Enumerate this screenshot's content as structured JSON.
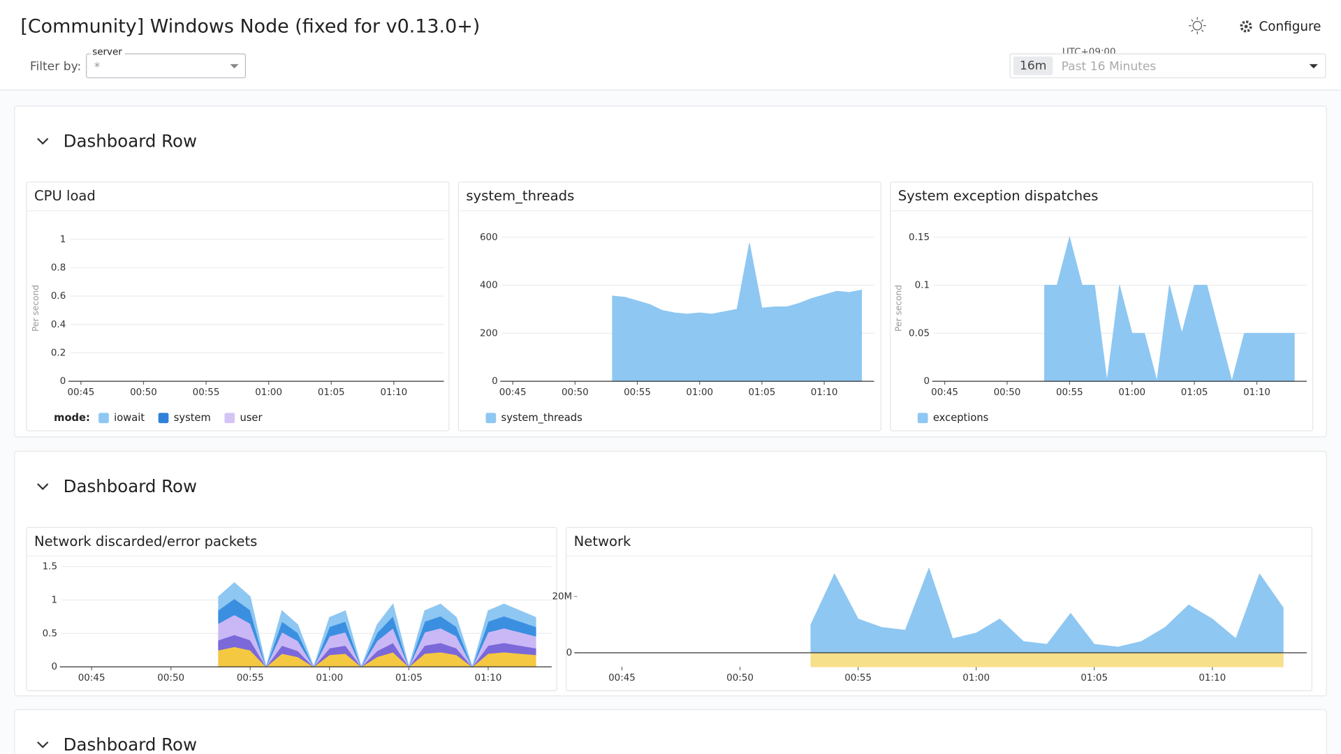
{
  "header": {
    "title": "[Community] Windows Node (fixed for v0.13.0+)",
    "configure": "Configure"
  },
  "filter": {
    "label": "Filter by:",
    "field": "server",
    "value": "*"
  },
  "time_range": {
    "timezone": "UTC+09:00",
    "short": "16m",
    "label": "Past 16 Minutes"
  },
  "rows": [
    {
      "title": "Dashboard Row"
    },
    {
      "title": "Dashboard Row"
    },
    {
      "title": "Dashboard Row"
    }
  ],
  "chart_data": [
    {
      "type": "area",
      "title": "CPU load",
      "ylabel": "Per second",
      "legend_title": "mode:",
      "x": [],
      "xlim": [
        "00:44",
        "01:14"
      ],
      "xticks": [
        "00:45",
        "00:50",
        "00:55",
        "01:00",
        "01:05",
        "01:10"
      ],
      "ylim": [
        0,
        1.15
      ],
      "yticks": [
        0,
        0.2,
        0.4,
        0.6,
        0.8,
        1
      ],
      "grid": true,
      "stacked": true,
      "series": [
        {
          "name": "iowait",
          "color": "#8ec7f2",
          "values": []
        },
        {
          "name": "system",
          "color": "#2f80d8",
          "values": []
        },
        {
          "name": "user",
          "color": "#d4c4f5",
          "values": []
        }
      ]
    },
    {
      "type": "area",
      "title": "system_threads",
      "x": [
        "00:53",
        "00:54",
        "00:55",
        "00:56",
        "00:57",
        "00:58",
        "00:59",
        "01:00",
        "01:01",
        "01:02",
        "01:03",
        "01:04",
        "01:05",
        "01:06",
        "01:07",
        "01:08",
        "01:09",
        "01:10",
        "01:11",
        "01:12",
        "01:13"
      ],
      "xlim": [
        "00:44",
        "01:14"
      ],
      "xticks": [
        "00:45",
        "00:50",
        "00:55",
        "01:00",
        "01:05",
        "01:10"
      ],
      "ylim": [
        0,
        680
      ],
      "yticks": [
        0,
        200,
        400,
        600
      ],
      "grid": true,
      "stacked": false,
      "series": [
        {
          "name": "system_threads",
          "color": "#8ec7f2",
          "values": [
            355,
            350,
            335,
            320,
            295,
            285,
            280,
            285,
            280,
            290,
            300,
            575,
            305,
            310,
            310,
            325,
            345,
            360,
            375,
            370,
            380
          ]
        }
      ]
    },
    {
      "type": "area",
      "title": "System exception dispatches",
      "ylabel": "Per second",
      "x": [
        "00:53",
        "00:54",
        "00:55",
        "00:56",
        "00:57",
        "00:58",
        "00:59",
        "01:00",
        "01:01",
        "01:02",
        "01:03",
        "01:04",
        "01:05",
        "01:06",
        "01:07",
        "01:08",
        "01:09",
        "01:10",
        "01:11",
        "01:12",
        "01:13"
      ],
      "xlim": [
        "00:44",
        "01:14"
      ],
      "xticks": [
        "00:45",
        "00:50",
        "00:55",
        "01:00",
        "01:05",
        "01:10"
      ],
      "ylim": [
        0,
        0.17
      ],
      "yticks": [
        0,
        0.05,
        0.1,
        0.15
      ],
      "grid": true,
      "stacked": false,
      "series": [
        {
          "name": "exceptions",
          "color": "#8ec7f2",
          "values": [
            0.1,
            0.1,
            0.15,
            0.1,
            0.1,
            0,
            0.1,
            0.05,
            0.05,
            0,
            0.1,
            0.05,
            0.1,
            0.1,
            0.05,
            0,
            0.05,
            0.05,
            0.05,
            0.05,
            0.05
          ]
        }
      ]
    },
    {
      "type": "area",
      "title": "Network discarded/error packets",
      "x": [
        "00:53",
        "00:54",
        "00:55",
        "00:56",
        "00:57",
        "00:58",
        "00:59",
        "01:00",
        "01:01",
        "01:02",
        "01:03",
        "01:04",
        "01:05",
        "01:06",
        "01:07",
        "01:08",
        "01:09",
        "01:10",
        "01:11",
        "01:12",
        "01:13"
      ],
      "xlim": [
        "00:43",
        "01:14"
      ],
      "xticks": [
        "00:45",
        "00:50",
        "00:55",
        "01:00",
        "01:05",
        "01:10"
      ],
      "ylim": [
        0,
        1.6
      ],
      "yticks": [
        0,
        0.5,
        1,
        1.5
      ],
      "grid": true,
      "stacked": true,
      "series": [
        {
          "color": "#f5c842",
          "values": [
            0.25,
            0.3,
            0.25,
            0,
            0.2,
            0.15,
            0,
            0.18,
            0.2,
            0,
            0.15,
            0.22,
            0,
            0.2,
            0.22,
            0.18,
            0,
            0.2,
            0.22,
            0.2,
            0.18
          ]
        },
        {
          "color": "#7b68d9",
          "values": [
            0.15,
            0.18,
            0.15,
            0,
            0.12,
            0.09,
            0,
            0.1,
            0.12,
            0,
            0.09,
            0.14,
            0,
            0.12,
            0.14,
            0.1,
            0,
            0.12,
            0.14,
            0.12,
            0.1
          ]
        },
        {
          "color": "#c9b8f5",
          "values": [
            0.25,
            0.3,
            0.25,
            0,
            0.2,
            0.15,
            0,
            0.18,
            0.2,
            0,
            0.15,
            0.22,
            0,
            0.2,
            0.22,
            0.18,
            0,
            0.2,
            0.22,
            0.2,
            0.18
          ]
        },
        {
          "color": "#3a8fe0",
          "values": [
            0.2,
            0.24,
            0.2,
            0,
            0.16,
            0.12,
            0,
            0.14,
            0.16,
            0,
            0.12,
            0.18,
            0,
            0.16,
            0.18,
            0.14,
            0,
            0.16,
            0.18,
            0.16,
            0.14
          ]
        },
        {
          "color": "#8ec7f2",
          "values": [
            0.2,
            0.24,
            0.2,
            0,
            0.16,
            0.12,
            0,
            0.14,
            0.16,
            0,
            0.12,
            0.18,
            0,
            0.16,
            0.18,
            0.14,
            0,
            0.16,
            0.18,
            0.16,
            0.14
          ]
        }
      ]
    },
    {
      "type": "area",
      "title": "Network",
      "x": [
        "00:53",
        "00:54",
        "00:55",
        "00:56",
        "00:57",
        "00:58",
        "00:59",
        "01:00",
        "01:01",
        "01:02",
        "01:03",
        "01:04",
        "01:05",
        "01:06",
        "01:07",
        "01:08",
        "01:09",
        "01:10",
        "01:11",
        "01:12",
        "01:13"
      ],
      "xlim": [
        "00:43",
        "01:14"
      ],
      "xticks": [
        "00:45",
        "00:50",
        "00:55",
        "01:00",
        "01:05",
        "01:10"
      ],
      "ylim": [
        -5000000,
        33000000
      ],
      "yticks": [
        0,
        {
          "value": 20000000,
          "label": "20M"
        }
      ],
      "grid": false,
      "stacked": false,
      "series": [
        {
          "color": "#8ec7f2",
          "values": [
            10000000,
            28000000,
            12000000,
            9000000,
            8000000,
            30000000,
            5000000,
            7000000,
            12000000,
            4000000,
            3000000,
            14000000,
            3000000,
            2000000,
            4000000,
            9000000,
            17000000,
            12000000,
            5000000,
            28000000,
            16000000
          ]
        },
        {
          "color": "#f7e08a",
          "values": [
            -5000000,
            -5000000,
            -5000000,
            -5000000,
            -5000000,
            -5000000,
            -5000000,
            -5000000,
            -5000000,
            -5000000,
            -5000000,
            -5000000,
            -5000000,
            -5000000,
            -5000000,
            -5000000,
            -5000000,
            -5000000,
            -5000000,
            -5000000,
            -5000000
          ]
        }
      ]
    }
  ]
}
